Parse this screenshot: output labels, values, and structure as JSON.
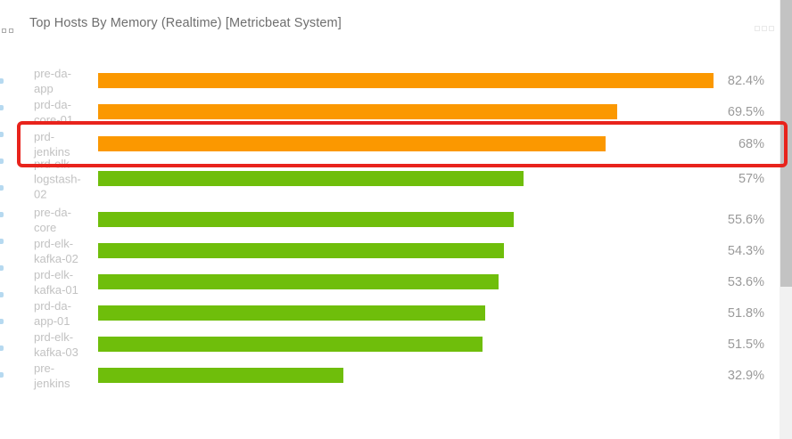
{
  "panel": {
    "title": "Top Hosts By Memory (Realtime) [Metricbeat System]"
  },
  "icons": {
    "drag_handle": "drag-handle-squares",
    "resize_handle": "resize-handle-squares"
  },
  "chart_data": {
    "type": "bar",
    "orientation": "horizontal",
    "title": "Top Hosts By Memory (Realtime) [Metricbeat System]",
    "unit": "%",
    "xlim": [
      0,
      100
    ],
    "grid": false,
    "legend": "none",
    "categories": [
      "pre-da-app",
      "prd-da-core-01",
      "prd-jenkins",
      "prd-elk-logstash-02",
      "pre-da-core",
      "prd-elk-kafka-02",
      "prd-elk-kafka-01",
      "prd-da-app-01",
      "prd-elk-kafka-03",
      "pre-jenkins"
    ],
    "values": [
      82.4,
      69.5,
      68,
      57,
      55.6,
      54.3,
      53.6,
      51.8,
      51.5,
      32.9
    ],
    "colors": {
      "high": "#fb9800",
      "normal": "#6fbe0b"
    },
    "bars": [
      {
        "host": "pre-da-app",
        "label_lines": [
          "pre-da-",
          "app"
        ],
        "value": 82.4,
        "display": "82.4%",
        "color": "#fb9800"
      },
      {
        "host": "prd-da-core-01",
        "label_lines": [
          "prd-da-",
          "core-01"
        ],
        "value": 69.5,
        "display": "69.5%",
        "color": "#fb9800"
      },
      {
        "host": "prd-jenkins",
        "label_lines": [
          "prd-",
          "jenkins"
        ],
        "value": 68,
        "display": "68%",
        "color": "#fb9800"
      },
      {
        "host": "prd-elk-logstash-02",
        "label_lines": [
          "prd-elk-",
          "logstash-",
          "02"
        ],
        "value": 57,
        "display": "57%",
        "color": "#6fbe0b"
      },
      {
        "host": "pre-da-core",
        "label_lines": [
          "pre-da-",
          "core"
        ],
        "value": 55.6,
        "display": "55.6%",
        "color": "#6fbe0b"
      },
      {
        "host": "prd-elk-kafka-02",
        "label_lines": [
          "prd-elk-",
          "kafka-02"
        ],
        "value": 54.3,
        "display": "54.3%",
        "color": "#6fbe0b"
      },
      {
        "host": "prd-elk-kafka-01",
        "label_lines": [
          "prd-elk-",
          "kafka-01"
        ],
        "value": 53.6,
        "display": "53.6%",
        "color": "#6fbe0b"
      },
      {
        "host": "prd-da-app-01",
        "label_lines": [
          "prd-da-",
          "app-01"
        ],
        "value": 51.8,
        "display": "51.8%",
        "color": "#6fbe0b"
      },
      {
        "host": "prd-elk-kafka-03",
        "label_lines": [
          "prd-elk-",
          "kafka-03"
        ],
        "value": 51.5,
        "display": "51.5%",
        "color": "#6fbe0b"
      },
      {
        "host": "pre-jenkins",
        "label_lines": [
          "pre-",
          "jenkins"
        ],
        "value": 32.9,
        "display": "32.9%",
        "color": "#6fbe0b"
      }
    ],
    "highlight": {
      "host": "prd-jenkins",
      "color": "#e8231c"
    }
  }
}
